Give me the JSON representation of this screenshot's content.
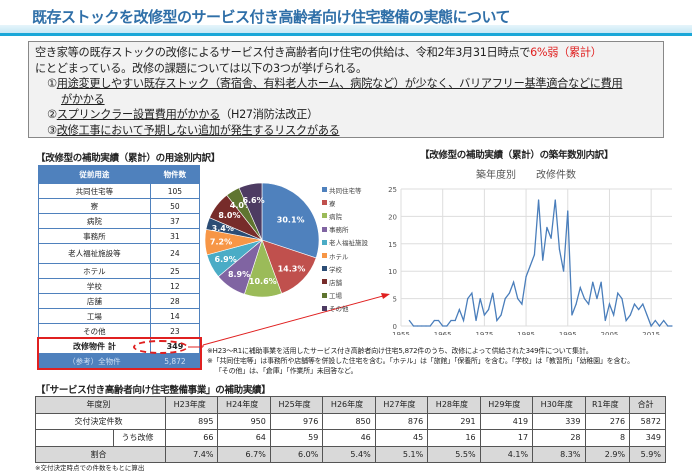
{
  "title": "既存ストックを改修型のサービス付き高齢者向け住宅整備の実態について",
  "summary": {
    "line1": "空き家等の既存ストックの改修によるサービス付き高齢者向け住宅の供給は、令和2年3月31日時点で",
    "highlight": "6%弱（累計）",
    "line2": "にとどまっている。改修の課題については以下の3つが挙げられる。",
    "items": [
      {
        "num": "①",
        "text": "用途変更しやすい既存ストック（寄宿舎、有料老人ホーム、病院など）が少なく、バリアフリー基準適合などに費用",
        "cont": "がかかる"
      },
      {
        "num": "②",
        "text": "スプリンクラー設置費用がかかる",
        "suffix": "（H27消防法改正）"
      },
      {
        "num": "③",
        "text": "改修工事において予期しない追加が発生するリスクがある"
      }
    ]
  },
  "usage": {
    "heading": "【改修型の補助実績（累計）の用途別内訳】",
    "columns": [
      "従前用途",
      "物件数"
    ],
    "rows": [
      [
        "共同住宅等",
        "105"
      ],
      [
        "寮",
        "50"
      ],
      [
        "病院",
        "37"
      ],
      [
        "事務所",
        "31"
      ],
      [
        "老人福祉施設等",
        "24"
      ],
      [
        "ホテル",
        "25"
      ],
      [
        "学校",
        "12"
      ],
      [
        "店舗",
        "28"
      ],
      [
        "工場",
        "14"
      ],
      [
        "その他",
        "23"
      ]
    ],
    "total": [
      "改修物件 計",
      "349"
    ],
    "reference": [
      "（参考）全物件",
      "5,872"
    ]
  },
  "pie": {
    "slices": [
      {
        "label": "共同住宅等",
        "value": 30.1,
        "text": "30.1%",
        "color": "#4f81bd"
      },
      {
        "label": "寮",
        "value": 14.3,
        "text": "14.3%",
        "color": "#c0504d"
      },
      {
        "label": "病院",
        "value": 10.6,
        "text": "10.6%",
        "color": "#9bbb59"
      },
      {
        "label": "事務所",
        "value": 8.9,
        "text": "8.9%",
        "color": "#8064a2"
      },
      {
        "label": "老人福祉施設",
        "value": 6.9,
        "text": "6.9%",
        "color": "#4bacc6"
      },
      {
        "label": "ホテル",
        "value": 7.2,
        "text": "7.2%",
        "color": "#f79646"
      },
      {
        "label": "学校",
        "value": 3.4,
        "text": "3.4%",
        "color": "#2c4d75"
      },
      {
        "label": "店舗",
        "value": 8.0,
        "text": "8.0%",
        "color": "#772c2a"
      },
      {
        "label": "工場",
        "value": 4.0,
        "text": "4.0%",
        "color": "#5f7530"
      },
      {
        "label": "その他",
        "value": 6.6,
        "text": "6.6%",
        "color": "#4d3b62"
      }
    ]
  },
  "chart_data": {
    "type": "line",
    "heading": "【改修型の補助実績（累計）の築年数別内訳】",
    "title": "築年度別　　改修件数",
    "xlim": [
      1955,
      2020
    ],
    "ylim": [
      0,
      25
    ],
    "xticks": [
      "1955",
      "1965",
      "1975",
      "1985",
      "1995",
      "2005",
      "2015"
    ],
    "yticks": [
      "0",
      "5",
      "10",
      "15",
      "20",
      "25"
    ],
    "x": [
      1957,
      1958,
      1959,
      1960,
      1961,
      1962,
      1963,
      1964,
      1965,
      1966,
      1967,
      1968,
      1969,
      1970,
      1971,
      1972,
      1973,
      1974,
      1975,
      1976,
      1977,
      1978,
      1979,
      1980,
      1981,
      1982,
      1983,
      1984,
      1985,
      1986,
      1987,
      1988,
      1989,
      1990,
      1991,
      1992,
      1993,
      1994,
      1995,
      1996,
      1997,
      1998,
      1999,
      2000,
      2001,
      2002,
      2003,
      2004,
      2005,
      2006,
      2007,
      2008,
      2009,
      2010,
      2011,
      2012,
      2013,
      2014,
      2015,
      2016,
      2017,
      2018,
      2019,
      2020
    ],
    "y": [
      1,
      0,
      0,
      0,
      0,
      0,
      1,
      1,
      0,
      0,
      1,
      1,
      3,
      1,
      5,
      6,
      1,
      5,
      2,
      3,
      6,
      1,
      2,
      5,
      6,
      8,
      5,
      4,
      9,
      11,
      13,
      23,
      12,
      18,
      16,
      23,
      14,
      10,
      21,
      2,
      4,
      7,
      5,
      4,
      8,
      5,
      8,
      1,
      4,
      2,
      6,
      5,
      1,
      2,
      4,
      3,
      4,
      2,
      0,
      1,
      0,
      1,
      0,
      0
    ],
    "color": "#4a7ebb"
  },
  "notes": [
    "※H23～R1に補助事業を活用したサービス付き高齢者向け住宅5,872件のうち、改修によって供給された349件について集計。",
    "※「共同住宅等」は事務所や店舗等を併設した住宅を含む。「ホテル」は「旅館」「保養所」を含む。「学校」は「教習所」「幼稚園」を含む。",
    "「その他」は、「倉庫」「作業所」未回答など。"
  ],
  "subsidy": {
    "heading": "【「サービス付き高齢者向け住宅整備事業」の補助実績】",
    "header": [
      "年度別",
      "H23年度",
      "H24年度",
      "H25年度",
      "H26年度",
      "H27年度",
      "H28年度",
      "H29年度",
      "H30年度",
      "R1年度",
      "合計"
    ],
    "decided": {
      "label": "交付決定件数",
      "values": [
        "895",
        "950",
        "976",
        "850",
        "876",
        "291",
        "419",
        "339",
        "276",
        "5872"
      ]
    },
    "renov": {
      "label": "うち改修",
      "values": [
        "66",
        "64",
        "59",
        "46",
        "45",
        "16",
        "17",
        "28",
        "8",
        "349"
      ]
    },
    "rate": {
      "label": "割合",
      "values": [
        "7.4%",
        "6.7%",
        "6.0%",
        "5.4%",
        "5.1%",
        "5.5%",
        "4.1%",
        "8.3%",
        "2.9%",
        "5.9%"
      ]
    },
    "footnote": "※交付決定時点での件数をもとに算出"
  }
}
